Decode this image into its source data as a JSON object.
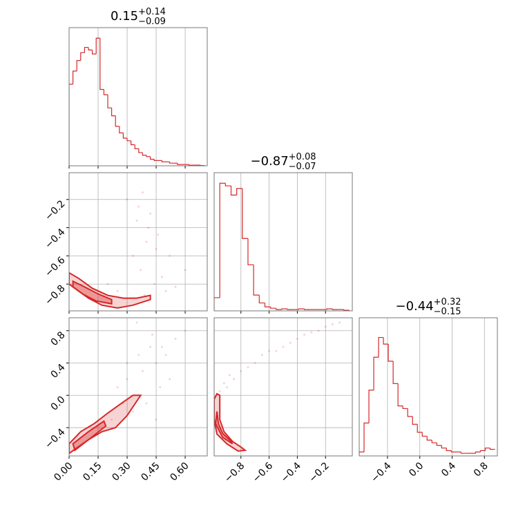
{
  "chart_data": {
    "type": "corner",
    "color": "#d62728",
    "grid": true,
    "params": [
      {
        "lim": [
          0,
          0.714
        ],
        "ticks": [
          {
            "value": 0,
            "label": "0.00"
          },
          {
            "value": 0.15,
            "label": "0.15"
          },
          {
            "value": 0.3,
            "label": "0.30"
          },
          {
            "value": 0.45,
            "label": "0.45"
          },
          {
            "value": 0.6,
            "label": "0.60"
          }
        ],
        "title": {
          "value": "0.15",
          "plus": "+0.14",
          "minus": "−0.09"
        },
        "hist": {
          "ylim": [
            0,
            1.05
          ],
          "bins": [
            0,
            0.02,
            0.04,
            0.06,
            0.08,
            0.1,
            0.12,
            0.14,
            0.16,
            0.18,
            0.2,
            0.22,
            0.24,
            0.26,
            0.28,
            0.3,
            0.32,
            0.34,
            0.36,
            0.38,
            0.4,
            0.42,
            0.44,
            0.46,
            0.48,
            0.5,
            0.52,
            0.54,
            0.56,
            0.58,
            0.6,
            0.62,
            0.64,
            0.66,
            0.68,
            0.7
          ],
          "counts": [
            0.62,
            0.72,
            0.8,
            0.86,
            0.9,
            0.88,
            0.85,
            0.97,
            0.58,
            0.54,
            0.44,
            0.38,
            0.3,
            0.25,
            0.21,
            0.19,
            0.16,
            0.13,
            0.1,
            0.08,
            0.07,
            0.05,
            0.04,
            0.04,
            0.03,
            0.03,
            0.02,
            0.02,
            0.01,
            0.01,
            0.01,
            0.005,
            0.005,
            0.005,
            0.002
          ]
        }
      },
      {
        "lim": [
          -0.99,
          -0.01
        ],
        "ticks": [
          {
            "value": -0.8,
            "label": "−0.8"
          },
          {
            "value": -0.6,
            "label": "−0.6"
          },
          {
            "value": -0.4,
            "label": "−0.4"
          },
          {
            "value": -0.2,
            "label": "−0.2"
          }
        ],
        "title": {
          "value": "−0.87",
          "plus": "+0.08",
          "minus": "−0.07"
        },
        "hist": {
          "ylim": [
            0,
            1.05
          ],
          "bins": [
            -0.99,
            -0.95,
            -0.91,
            -0.87,
            -0.83,
            -0.79,
            -0.75,
            -0.71,
            -0.67,
            -0.63,
            -0.59,
            -0.55,
            -0.51,
            -0.47,
            -0.43,
            -0.39,
            -0.35,
            -0.31,
            -0.27,
            -0.23,
            -0.19,
            -0.15,
            -0.11,
            -0.07,
            -0.03
          ],
          "counts": [
            0.1,
            0.97,
            0.95,
            0.88,
            0.93,
            0.55,
            0.35,
            0.12,
            0.06,
            0.03,
            0.02,
            0.01,
            0.015,
            0.01,
            0.01,
            0.015,
            0.01,
            0.01,
            0.01,
            0.01,
            0.015,
            0.01,
            0.01,
            0.005
          ]
        }
      },
      {
        "lim": [
          -0.75,
          0.96
        ],
        "ticks": [
          {
            "value": -0.4,
            "label": "−0.4"
          },
          {
            "value": 0,
            "label": "0.0"
          },
          0.4,
          0.8
        ],
        "title": {
          "value": "−0.44",
          "plus": "+0.32",
          "minus": "−0.15"
        },
        "hist": {
          "ylim": [
            0,
            1.05
          ],
          "bins": [
            -0.75,
            -0.69,
            -0.63,
            -0.57,
            -0.51,
            -0.45,
            -0.39,
            -0.33,
            -0.27,
            -0.21,
            -0.15,
            -0.09,
            -0.03,
            0.03,
            0.09,
            0.15,
            0.21,
            0.27,
            0.33,
            0.39,
            0.45,
            0.51,
            0.57,
            0.63,
            0.69,
            0.75,
            0.81,
            0.87,
            0.93
          ],
          "counts": [
            0.03,
            0.25,
            0.5,
            0.75,
            0.9,
            0.85,
            0.72,
            0.55,
            0.38,
            0.36,
            0.3,
            0.24,
            0.18,
            0.15,
            0.12,
            0.1,
            0.08,
            0.06,
            0.04,
            0.03,
            0.03,
            0.02,
            0.02,
            0.02,
            0.03,
            0.04,
            0.06,
            0.05
          ]
        }
      }
    ],
    "pairs": [
      {
        "scatter": {
          "x": [
            0.3,
            0.35,
            0.38,
            0.4,
            0.42,
            0.45,
            0.33,
            0.37,
            0.44,
            0.48,
            0.5,
            0.55,
            0.6,
            0.36,
            0.41,
            0.25,
            0.2,
            0.52,
            0.46,
            0.39
          ],
          "y": [
            -0.2,
            -0.35,
            -0.15,
            -0.5,
            -0.3,
            -0.55,
            -0.6,
            -0.7,
            -0.8,
            -0.75,
            -0.85,
            -0.82,
            -0.7,
            -0.25,
            -0.4,
            -0.85,
            -0.8,
            -0.6,
            -0.45,
            -0.88
          ]
        },
        "contours": [
          {
            "x": [
              0,
              0.05,
              0.12,
              0.2,
              0.28,
              0.35,
              0.42,
              0.42,
              0.33,
              0.25,
              0.17,
              0.1,
              0.04,
              0
            ],
            "y": [
              -0.72,
              -0.76,
              -0.83,
              -0.88,
              -0.9,
              -0.9,
              -0.88,
              -0.91,
              -0.95,
              -0.97,
              -0.95,
              -0.9,
              -0.84,
              -0.8
            ]
          },
          {
            "x": [
              0.02,
              0.08,
              0.15,
              0.22,
              0.22,
              0.14,
              0.07,
              0.02
            ],
            "y": [
              -0.78,
              -0.82,
              -0.87,
              -0.91,
              -0.94,
              -0.92,
              -0.87,
              -0.82
            ]
          }
        ]
      },
      {
        "scatter": {
          "x": [
            0.35,
            0.42,
            0.45,
            0.5,
            0.3,
            0.38,
            0.28,
            0.55,
            0.47,
            0.33,
            0.4,
            0.36,
            0.25,
            0.22,
            0.6,
            0.52,
            0.43,
            0.3,
            0.45,
            0.48
          ],
          "y": [
            0.9,
            0.6,
            0.4,
            0.5,
            0.2,
            0.3,
            -0.1,
            0.7,
            0.1,
            -0.2,
            -0.1,
            0.5,
            0.1,
            -0.3,
            0.8,
            0.2,
            0.75,
            0.4,
            -0.3,
            0.6
          ]
        },
        "contours": [
          {
            "x": [
              0,
              0.06,
              0.13,
              0.2,
              0.27,
              0.33,
              0.37,
              0.3,
              0.24,
              0.17,
              0.1,
              0.04,
              0,
              0
            ],
            "y": [
              -0.6,
              -0.45,
              -0.35,
              -0.22,
              -0.1,
              0,
              0,
              -0.25,
              -0.4,
              -0.45,
              -0.55,
              -0.65,
              -0.72,
              -0.65
            ]
          },
          {
            "x": [
              0.02,
              0.1,
              0.18,
              0.19,
              0.1,
              0.03
            ],
            "y": [
              -0.6,
              -0.45,
              -0.32,
              -0.38,
              -0.55,
              -0.68
            ]
          }
        ]
      },
      {
        "scatter": {
          "x": [
            -0.9,
            -0.85,
            -0.8,
            -0.7,
            -0.6,
            -0.5,
            -0.4,
            -0.3,
            -0.2,
            -0.1,
            -0.75,
            -0.65,
            -0.55,
            -0.45,
            -0.35,
            -0.25,
            -0.15,
            -0.92,
            -0.88,
            -0.95
          ],
          "y": [
            0.1,
            0.2,
            0.3,
            0.4,
            0.55,
            0.6,
            0.7,
            0.78,
            0.85,
            0.9,
            0.35,
            0.5,
            0.55,
            0.65,
            0.75,
            0.8,
            0.88,
            0.15,
            0.25,
            0.05
          ]
        },
        "contours": [
          {
            "x": [
              -0.97,
              -0.95,
              -0.95,
              -0.92,
              -0.86,
              -0.8,
              -0.77,
              -0.82,
              -0.9,
              -0.97,
              -0.99,
              -0.99
            ],
            "y": [
              0.02,
              0,
              -0.3,
              -0.45,
              -0.57,
              -0.64,
              -0.68,
              -0.69,
              -0.6,
              -0.48,
              -0.3,
              -0.05
            ]
          },
          {
            "x": [
              -0.97,
              -0.96,
              -0.93,
              -0.87,
              -0.86,
              -0.93,
              -0.98
            ],
            "y": [
              -0.2,
              -0.35,
              -0.47,
              -0.57,
              -0.6,
              -0.52,
              -0.35
            ]
          }
        ]
      }
    ]
  }
}
